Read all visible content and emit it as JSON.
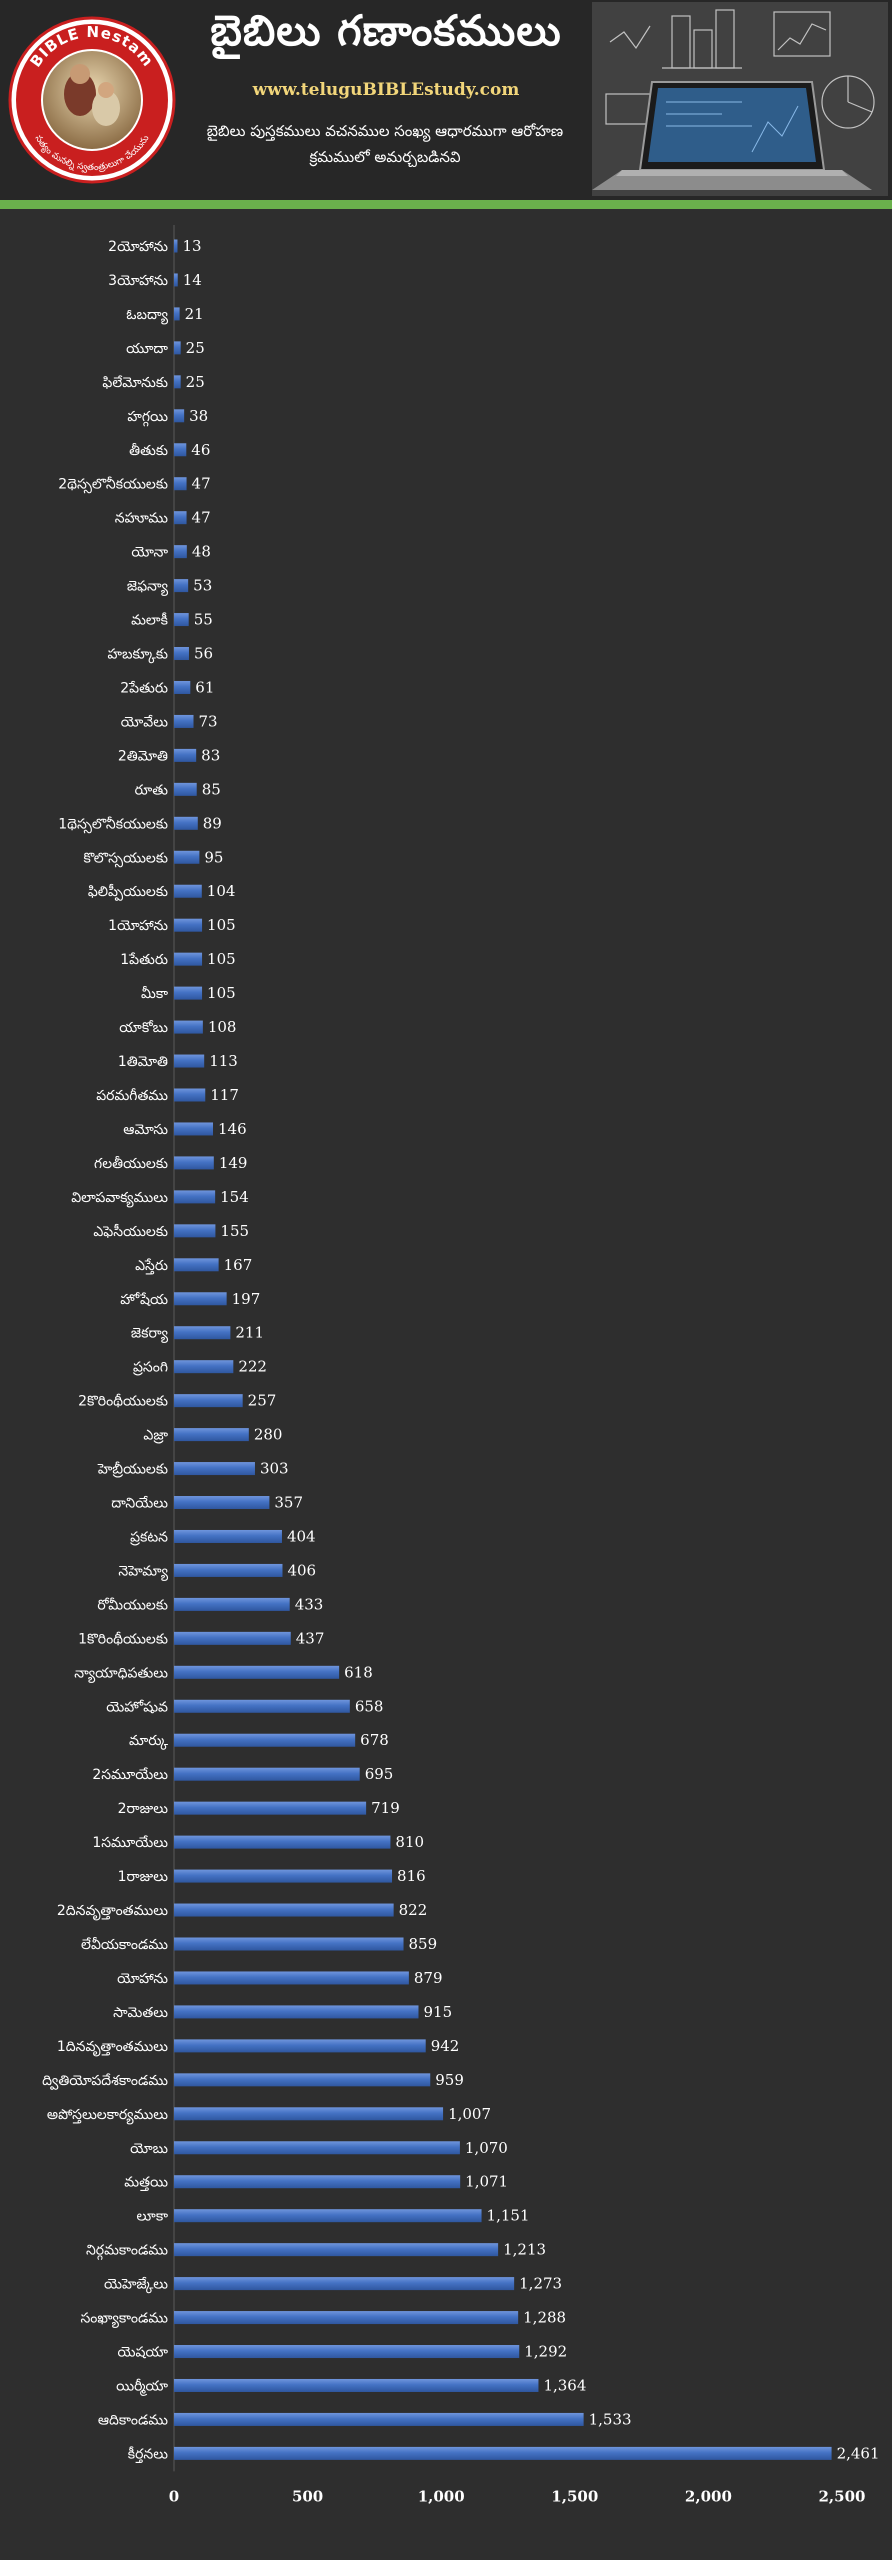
{
  "header": {
    "title": "బైబిలు గణాంకములు",
    "website": "www.teluguBIBLEstudy.com",
    "subtitle": "బైబిలు పుస్తకములు వచనముల సంఖ్య ఆధారముగా ఆరోహణ క్రమములో అమర్చబడినవి",
    "logo_text_top": "BIBLE Nestam",
    "logo_text_bottom": "సత్యం మనల్ని స్వతంత్రులుగా చేయును"
  },
  "colors": {
    "background": "#2e2e2e",
    "bar": "#4472c4",
    "bar_highlight": "#6f95dc",
    "accent_green": "#6ab04c",
    "website": "#f2d67a"
  },
  "chart_data": {
    "type": "bar",
    "orientation": "horizontal",
    "title": "",
    "xlabel": "",
    "ylabel": "",
    "xlim": [
      0,
      2500
    ],
    "x_ticks": [
      "0",
      "500",
      "1,000",
      "1,500",
      "2,000",
      "2,500"
    ],
    "grid": false,
    "legend": "none",
    "categories": [
      "2యోహాను",
      "3యోహాను",
      "ఓబద్యా",
      "యూదా",
      "ఫిలేమోనుకు",
      "హగ్గయి",
      "తీతుకు",
      "2థెస్సలొనీకయులకు",
      "నహూము",
      "యోనా",
      "జెఫన్యా",
      "మలాకీ",
      "హబక్కూకు",
      "2పేతురు",
      "యోవేలు",
      "2తిమోతి",
      "రూతు",
      "1థెస్సలొనీకయులకు",
      "కొలొస్సయులకు",
      "ఫిలిప్పీయులకు",
      "1యోహాను",
      "1పేతురు",
      "మీకా",
      "యాకోబు",
      "1తిమోతి",
      "పరమగీతము",
      "ఆమోసు",
      "గలతీయులకు",
      "విలాపవాక్యములు",
      "ఎఫెసీయులకు",
      "ఎస్తేరు",
      "హోషేయ",
      "జెకర్యా",
      "ప్రసంగి",
      "2కొరింథీయులకు",
      "ఎజ్రా",
      "హెబ్రీయులకు",
      "దానియేలు",
      "ప్రకటన",
      "నెహెమ్యా",
      "రోమీయులకు",
      "1కొరింథీయులకు",
      "న్యాయాధిపతులు",
      "యెహోషువ",
      "మార్కు",
      "2సమూయేలు",
      "2రాజులు",
      "1సమూయేలు",
      "1రాజులు",
      "2దినవృత్తాంతములు",
      "లేవీయకాండము",
      "యోహాను",
      "సామెతలు",
      "1దినవృత్తాంతములు",
      "ద్వితియోపదేశకాండము",
      "అపోస్తలులకార్యములు",
      "యోబు",
      "మత్తయి",
      "లూకా",
      "నిర్గమకాండము",
      "యెహెజ్కేలు",
      "సంఖ్యాకాండము",
      "యెషయా",
      "యిర్మీయా",
      "ఆదికాండము",
      "కీర్తనలు"
    ],
    "values": [
      13,
      14,
      21,
      25,
      25,
      38,
      46,
      47,
      47,
      48,
      53,
      55,
      56,
      61,
      73,
      83,
      85,
      89,
      95,
      104,
      105,
      105,
      105,
      108,
      113,
      117,
      146,
      149,
      154,
      155,
      167,
      197,
      211,
      222,
      257,
      280,
      303,
      357,
      404,
      406,
      433,
      437,
      618,
      658,
      678,
      695,
      719,
      810,
      816,
      822,
      859,
      879,
      915,
      942,
      959,
      1007,
      1070,
      1071,
      1151,
      1213,
      1273,
      1288,
      1292,
      1364,
      1533,
      2461
    ],
    "value_labels": [
      "13",
      "14",
      "21",
      "25",
      "25",
      "38",
      "46",
      "47",
      "47",
      "48",
      "53",
      "55",
      "56",
      "61",
      "73",
      "83",
      "85",
      "89",
      "95",
      "104",
      "105",
      "105",
      "105",
      "108",
      "113",
      "117",
      "146",
      "149",
      "154",
      "155",
      "167",
      "197",
      "211",
      "222",
      "257",
      "280",
      "303",
      "357",
      "404",
      "406",
      "433",
      "437",
      "618",
      "658",
      "678",
      "695",
      "719",
      "810",
      "816",
      "822",
      "859",
      "879",
      "915",
      "942",
      "959",
      "1,007",
      "1,070",
      "1,071",
      "1,151",
      "1,213",
      "1,273",
      "1,288",
      "1,292",
      "1,364",
      "1,533",
      "2,461"
    ]
  }
}
